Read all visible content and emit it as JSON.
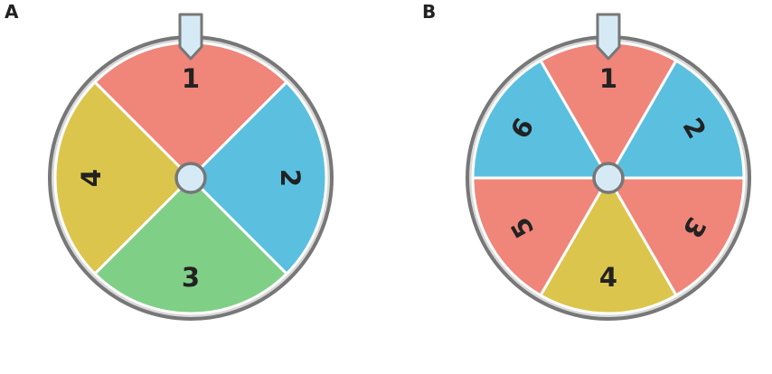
{
  "spinners": [
    {
      "label": "A",
      "sections": [
        {
          "label": "1",
          "color": "#f0857a"
        },
        {
          "label": "2",
          "color": "#5bc0e0"
        },
        {
          "label": "3",
          "color": "#80cf87"
        },
        {
          "label": "4",
          "color": "#dcc54d"
        }
      ]
    },
    {
      "label": "B",
      "sections": [
        {
          "label": "1",
          "color": "#f0857a"
        },
        {
          "label": "2",
          "color": "#5bc0e0"
        },
        {
          "label": "3",
          "color": "#f0857a"
        },
        {
          "label": "4",
          "color": "#dcc54d"
        },
        {
          "label": "5",
          "color": "#f0857a"
        },
        {
          "label": "6",
          "color": "#5bc0e0"
        }
      ]
    }
  ]
}
